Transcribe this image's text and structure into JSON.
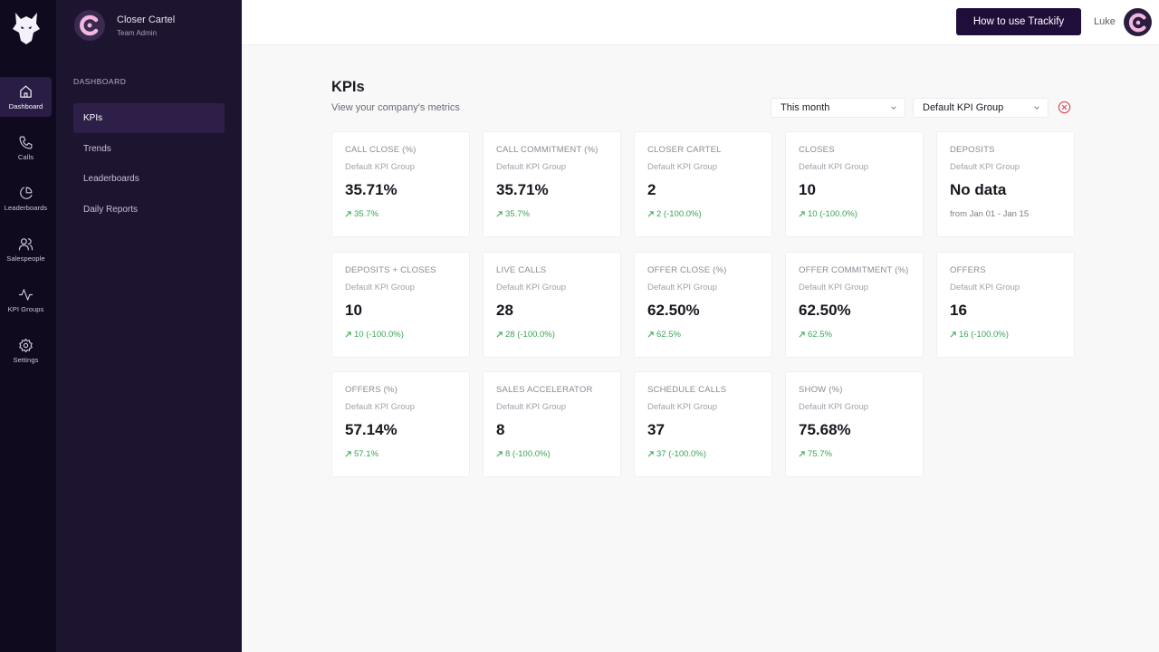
{
  "rail": {
    "items": [
      {
        "label": "Dashboard",
        "icon": "home-icon",
        "active": true
      },
      {
        "label": "Calls",
        "icon": "phone-icon"
      },
      {
        "label": "Leaderboards",
        "icon": "pie-chart-icon"
      },
      {
        "label": "Salespeople",
        "icon": "users-icon"
      },
      {
        "label": "KPI Groups",
        "icon": "activity-icon"
      },
      {
        "label": "Settings",
        "icon": "gear-icon"
      }
    ]
  },
  "org": {
    "name": "Closer Cartel",
    "role": "Team Admin"
  },
  "subnav": {
    "section": "DASHBOARD",
    "items": [
      {
        "label": "KPIs",
        "active": true
      },
      {
        "label": "Trends"
      },
      {
        "label": "Leaderboards"
      },
      {
        "label": "Daily Reports"
      }
    ]
  },
  "header": {
    "help_label": "How to use Trackify",
    "user_name": "Luke"
  },
  "page": {
    "title": "KPIs",
    "subtitle": "View your company's metrics"
  },
  "filters": {
    "period": "This month",
    "group": "Default KPI Group"
  },
  "colors": {
    "accent": "#1f0d3a",
    "positive": "#3aa457",
    "clear": "#e0454e"
  },
  "cards": [
    {
      "title": "CALL CLOSE (%)",
      "group": "Default KPI Group",
      "value": "35.71%",
      "delta": "35.7%",
      "trend": "up"
    },
    {
      "title": "CALL COMMITMENT (%)",
      "group": "Default KPI Group",
      "value": "35.71%",
      "delta": "35.7%",
      "trend": "up"
    },
    {
      "title": "CLOSER CARTEL",
      "group": "Default KPI Group",
      "value": "2",
      "delta": "2 (-100.0%)",
      "trend": "up"
    },
    {
      "title": "CLOSES",
      "group": "Default KPI Group",
      "value": "10",
      "delta": "10 (-100.0%)",
      "trend": "up"
    },
    {
      "title": "DEPOSITS",
      "group": "Default KPI Group",
      "value": "No data",
      "delta": "from Jan 01 - Jan 15",
      "trend": "none"
    },
    {
      "title": "DEPOSITS + CLOSES",
      "group": "Default KPI Group",
      "value": "10",
      "delta": "10 (-100.0%)",
      "trend": "up"
    },
    {
      "title": "LIVE CALLS",
      "group": "Default KPI Group",
      "value": "28",
      "delta": "28 (-100.0%)",
      "trend": "up"
    },
    {
      "title": "OFFER CLOSE (%)",
      "group": "Default KPI Group",
      "value": "62.50%",
      "delta": "62.5%",
      "trend": "up"
    },
    {
      "title": "OFFER COMMITMENT (%)",
      "group": "Default KPI Group",
      "value": "62.50%",
      "delta": "62.5%",
      "trend": "up"
    },
    {
      "title": "OFFERS",
      "group": "Default KPI Group",
      "value": "16",
      "delta": "16 (-100.0%)",
      "trend": "up"
    },
    {
      "title": "OFFERS (%)",
      "group": "Default KPI Group",
      "value": "57.14%",
      "delta": "57.1%",
      "trend": "up"
    },
    {
      "title": "SALES ACCELERATOR",
      "group": "Default KPI Group",
      "value": "8",
      "delta": "8 (-100.0%)",
      "trend": "up"
    },
    {
      "title": "SCHEDULE CALLS",
      "group": "Default KPI Group",
      "value": "37",
      "delta": "37 (-100.0%)",
      "trend": "up"
    },
    {
      "title": "SHOW (%)",
      "group": "Default KPI Group",
      "value": "75.68%",
      "delta": "75.7%",
      "trend": "up"
    }
  ]
}
